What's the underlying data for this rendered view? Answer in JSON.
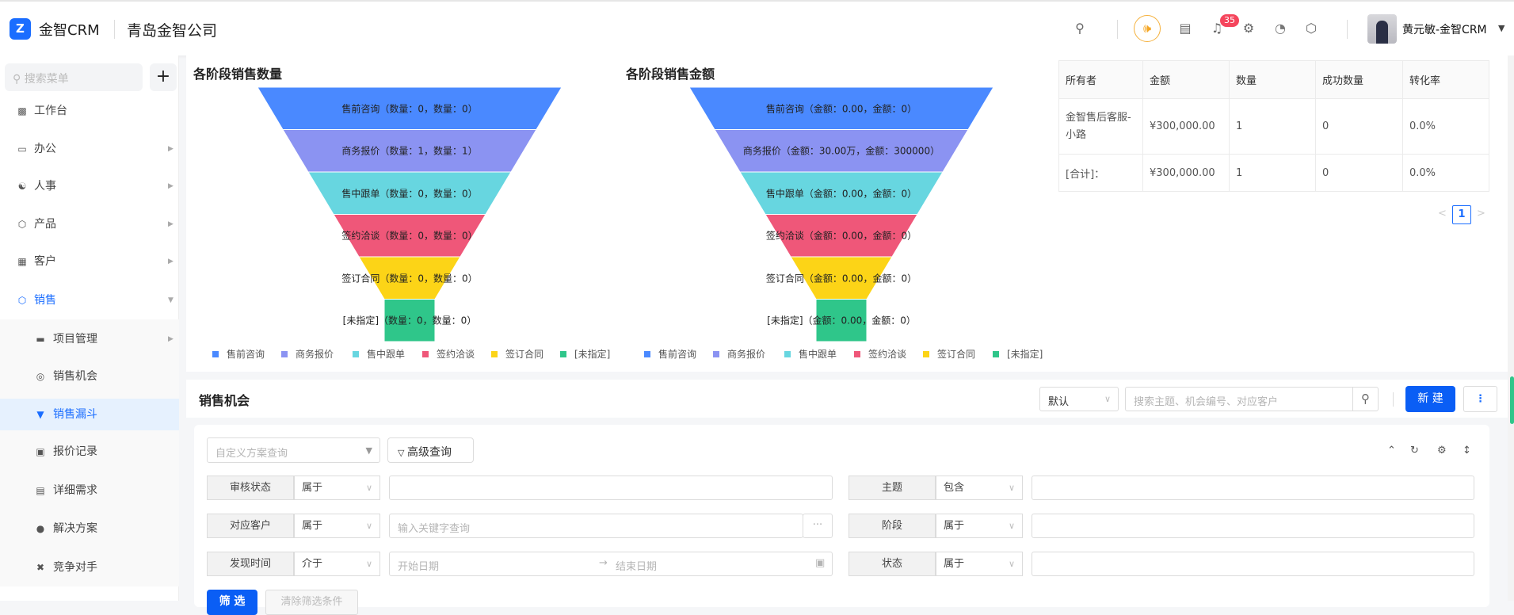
{
  "header": {
    "logo_text": "Z",
    "brand": "金智CRM",
    "company": "青岛金智公司",
    "notification_count": "35",
    "user_name": "黄元敏-金智CRM",
    "icons": [
      "search-icon",
      "speaker-icon",
      "inbox-icon",
      "bell-icon",
      "gear-icon",
      "pie-chart-icon",
      "shield-icon"
    ]
  },
  "sidebar": {
    "search_placeholder": "搜索菜单",
    "add_label": "+",
    "items": [
      {
        "label": "工作台",
        "icon": "dashboard-icon"
      },
      {
        "label": "办公",
        "icon": "monitor-icon"
      },
      {
        "label": "人事",
        "icon": "people-icon"
      },
      {
        "label": "产品",
        "icon": "cube-icon"
      },
      {
        "label": "客户",
        "icon": "building-icon"
      },
      {
        "label": "销售",
        "icon": "sales-icon"
      }
    ],
    "sub_items": [
      {
        "label": "项目管理",
        "icon": "folder-icon"
      },
      {
        "label": "销售机会",
        "icon": "target-icon"
      },
      {
        "label": "销售漏斗",
        "icon": "funnel-icon"
      },
      {
        "label": "报价记录",
        "icon": "wallet-icon"
      },
      {
        "label": "详细需求",
        "icon": "document-icon"
      },
      {
        "label": "解决方案",
        "icon": "bulb-icon"
      },
      {
        "label": "竞争对手",
        "icon": "swords-icon"
      }
    ],
    "active_item": "销售漏斗"
  },
  "chart_data": [
    {
      "type": "funnel",
      "title": "各阶段销售数量",
      "categories": [
        "售前咨询",
        "商务报价",
        "售中跟单",
        "签约洽谈",
        "签订合同",
        "[未指定]"
      ],
      "values": [
        0,
        1,
        0,
        0,
        0,
        0
      ],
      "labels": [
        "售前咨询（数量：0，数量：0）",
        "商务报价（数量：1，数量：1）",
        "售中跟单（数量：0，数量：0）",
        "签约洽谈（数量：0，数量：0）",
        "签订合同（数量：0，数量：0）",
        "[未指定]（数量：0，数量：0）"
      ],
      "colors": [
        "#4a89ff",
        "#8b93f2",
        "#67d6e0",
        "#ef5779",
        "#fcd417",
        "#2fc68a"
      ],
      "legend": "bottom"
    },
    {
      "type": "funnel",
      "title": "各阶段销售金额",
      "categories": [
        "售前咨询",
        "商务报价",
        "售中跟单",
        "签约洽谈",
        "签订合同",
        "[未指定]"
      ],
      "values": [
        0,
        300000,
        0,
        0,
        0,
        0
      ],
      "labels": [
        "售前咨询（金额：0.00，金额：0）",
        "商务报价（金额：30.00万，金额：300000）",
        "售中跟单（金额：0.00，金额：0）",
        "签约洽谈（金额：0.00，金额：0）",
        "签订合同（金额：0.00，金额：0）",
        "[未指定]（金额：0.00，金额：0）"
      ],
      "colors": [
        "#4a89ff",
        "#8b93f2",
        "#67d6e0",
        "#ef5779",
        "#fcd417",
        "#2fc68a"
      ],
      "legend": "bottom"
    }
  ],
  "summary_table": {
    "columns": [
      "所有者",
      "金额",
      "数量",
      "成功数量",
      "转化率"
    ],
    "rows": [
      [
        "金智售后客服-小路",
        "¥300,000.00",
        "1",
        "0",
        "0.0%"
      ],
      [
        "[合计]：",
        "¥300,000.00",
        "1",
        "0",
        "0.0%"
      ]
    ],
    "page": "1"
  },
  "opportunities": {
    "title": "销售机会",
    "sort_value": "默认",
    "search_placeholder": "搜索主题、机会编号、对应客户",
    "new_label": "新 建",
    "more_label": "⋮",
    "scheme_placeholder": "自定义方案查询",
    "advanced_label": "高级查询",
    "filters_left": [
      {
        "label": "审核状态",
        "op": "属于",
        "value": ""
      },
      {
        "label": "对应客户",
        "op": "属于",
        "placeholder": "输入关键字查询",
        "extra": "···"
      },
      {
        "label": "发现时间",
        "op": "介于",
        "start_placeholder": "开始日期",
        "arrow": "→",
        "end_placeholder": "结束日期"
      }
    ],
    "filters_right": [
      {
        "label": "主题",
        "op": "包含",
        "value": ""
      },
      {
        "label": "阶段",
        "op": "属于",
        "value": ""
      },
      {
        "label": "状态",
        "op": "属于",
        "value": ""
      }
    ],
    "filter_label": "筛 选",
    "clear_label": "清除筛选条件"
  }
}
